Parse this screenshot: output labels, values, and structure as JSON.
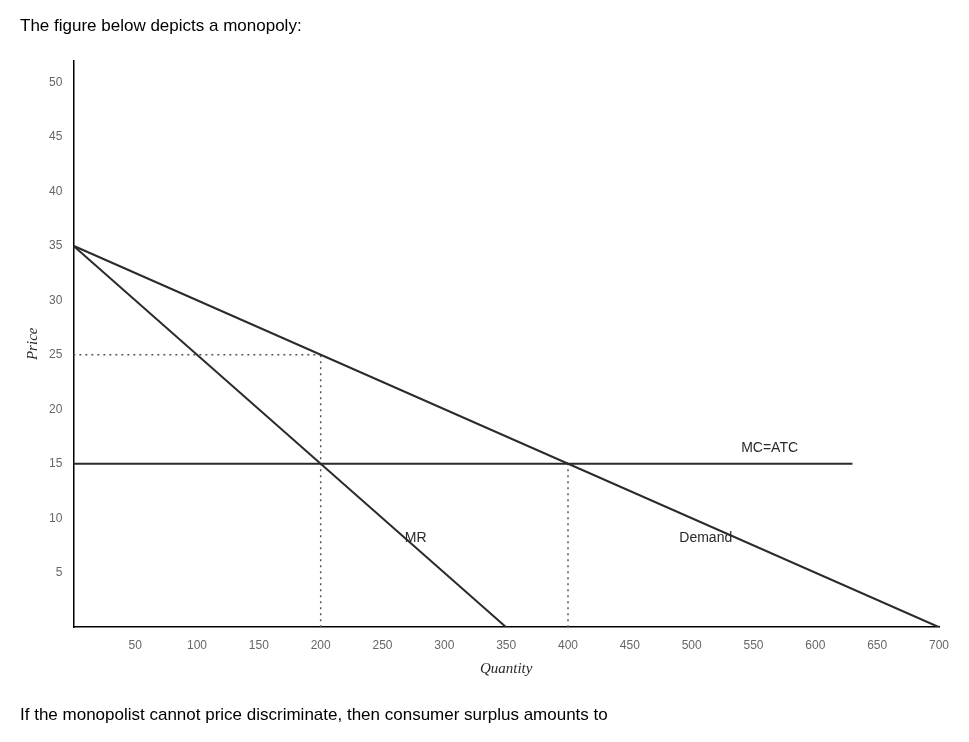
{
  "chart_data": {
    "type": "line",
    "title": "The figure below depicts a monopoly:",
    "footer": "If the monopolist cannot price discriminate, then consumer surplus amounts to",
    "xlabel": "Quantity",
    "ylabel": "Price",
    "xlim": [
      0,
      700
    ],
    "ylim": [
      0,
      52
    ],
    "xticks": [
      50,
      100,
      150,
      200,
      250,
      300,
      350,
      400,
      450,
      500,
      550,
      600,
      650,
      700
    ],
    "yticks": [
      5,
      10,
      15,
      20,
      25,
      30,
      35,
      40,
      45,
      50
    ],
    "grid": false,
    "series": [
      {
        "x": [
          0,
          700
        ],
        "values": [
          35,
          0
        ],
        "color": "#2a2a2a",
        "line_style": "solid"
      },
      {
        "x": [
          0,
          350
        ],
        "values": [
          35,
          0
        ],
        "color": "#2a2a2a",
        "line_style": "solid"
      },
      {
        "x": [
          0,
          630
        ],
        "values": [
          15,
          15
        ],
        "color": "#2a2a2a",
        "line_style": "solid"
      },
      {
        "x": [
          200,
          200
        ],
        "values": [
          0,
          25
        ],
        "color": "#555555",
        "line_style": "dotted"
      },
      {
        "x": [
          0,
          200
        ],
        "values": [
          25,
          25
        ],
        "color": "#555555",
        "line_style": "dotted"
      },
      {
        "x": [
          400,
          400
        ],
        "values": [
          0,
          15
        ],
        "color": "#555555",
        "line_style": "dotted"
      }
    ],
    "annotations": [
      {
        "text": "MC=ATC",
        "x": 540,
        "y": 15.8
      },
      {
        "text": "MR",
        "x": 268,
        "y": 7.5
      },
      {
        "text": "Demand",
        "x": 490,
        "y": 7.5
      }
    ]
  }
}
